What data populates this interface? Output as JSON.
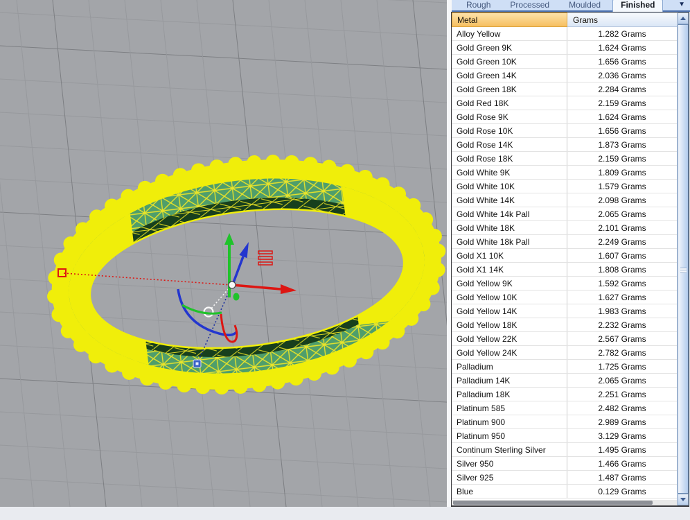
{
  "colors": {
    "ring-yellow": "#f0ee0a",
    "mesh-green": "#4f9e6b",
    "mesh-dark": "#173f1d",
    "axis-x-red": "#dd1612",
    "axis-y-green": "#1fc32a",
    "axis-z-blue": "#2336cf",
    "tabbar-bg": "#cfdff6",
    "tab-underline": "#4f74b2",
    "header-orange": "#f6bf61",
    "header-border": "#dfa53e"
  },
  "tabs": {
    "items": [
      {
        "label": "Rough",
        "active": false
      },
      {
        "label": "Processed",
        "active": false
      },
      {
        "label": "Moulded",
        "active": false
      },
      {
        "label": "Finished",
        "active": true
      }
    ],
    "dropdown_icon": "▼"
  },
  "table": {
    "columns": [
      "Metal",
      "Grams"
    ],
    "rows": [
      {
        "metal": "Alloy Yellow",
        "grams": "1.282 Grams"
      },
      {
        "metal": "Gold Green 9K",
        "grams": "1.624 Grams"
      },
      {
        "metal": "Gold Green 10K",
        "grams": "1.656 Grams"
      },
      {
        "metal": "Gold Green 14K",
        "grams": "2.036 Grams"
      },
      {
        "metal": "Gold Green 18K",
        "grams": "2.284 Grams"
      },
      {
        "metal": "Gold Red 18K",
        "grams": "2.159 Grams"
      },
      {
        "metal": "Gold Rose 9K",
        "grams": "1.624 Grams"
      },
      {
        "metal": "Gold Rose 10K",
        "grams": "1.656 Grams"
      },
      {
        "metal": "Gold Rose 14K",
        "grams": "1.873 Grams"
      },
      {
        "metal": "Gold Rose 18K",
        "grams": "2.159 Grams"
      },
      {
        "metal": "Gold White 9K",
        "grams": "1.809 Grams"
      },
      {
        "metal": "Gold White 10K",
        "grams": "1.579 Grams"
      },
      {
        "metal": "Gold White 14K",
        "grams": "2.098 Grams"
      },
      {
        "metal": "Gold White 14k Pall",
        "grams": "2.065 Grams"
      },
      {
        "metal": "Gold White 18K",
        "grams": "2.101 Grams"
      },
      {
        "metal": "Gold White 18k Pall",
        "grams": "2.249 Grams"
      },
      {
        "metal": "Gold X1 10K",
        "grams": "1.607 Grams"
      },
      {
        "metal": "Gold X1 14K",
        "grams": "1.808 Grams"
      },
      {
        "metal": "Gold Yellow 9K",
        "grams": "1.592 Grams"
      },
      {
        "metal": "Gold Yellow 10K",
        "grams": "1.627 Grams"
      },
      {
        "metal": "Gold Yellow 14K",
        "grams": "1.983 Grams"
      },
      {
        "metal": "Gold Yellow 18K",
        "grams": "2.232 Grams"
      },
      {
        "metal": "Gold Yellow 22K",
        "grams": "2.567 Grams"
      },
      {
        "metal": "Gold Yellow 24K",
        "grams": "2.782 Grams"
      },
      {
        "metal": "Palladium",
        "grams": "1.725 Grams"
      },
      {
        "metal": "Palladium 14K",
        "grams": "2.065 Grams"
      },
      {
        "metal": "Palladium 18K",
        "grams": "2.251 Grams"
      },
      {
        "metal": "Platinum 585",
        "grams": "2.482 Grams"
      },
      {
        "metal": "Platinum 900",
        "grams": "2.989 Grams"
      },
      {
        "metal": "Platinum 950",
        "grams": "3.129 Grams"
      },
      {
        "metal": "Continum Sterling Silver",
        "grams": "1.495 Grams"
      },
      {
        "metal": "Silver 950",
        "grams": "1.466 Grams"
      },
      {
        "metal": "Silver 925",
        "grams": "1.487 Grams"
      },
      {
        "metal": "Blue",
        "grams": "0.129 Grams"
      }
    ]
  }
}
